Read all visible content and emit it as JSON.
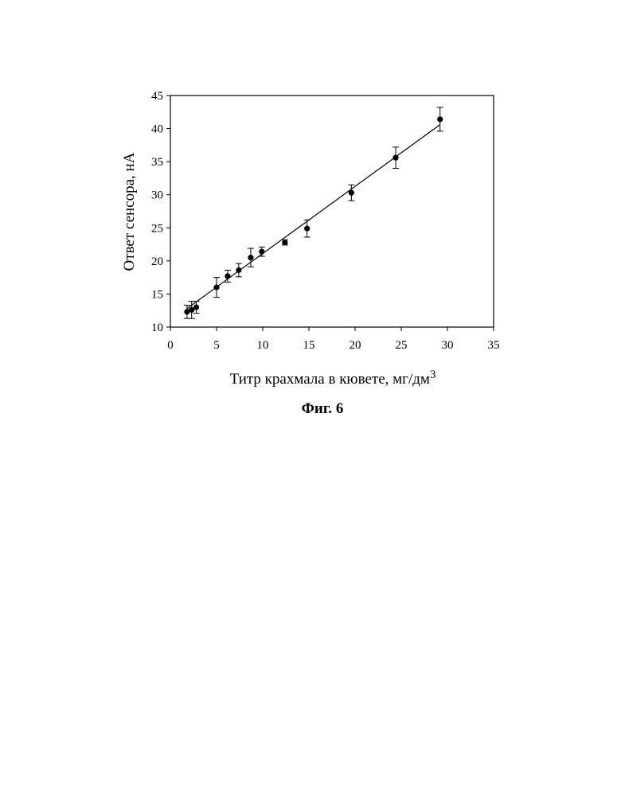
{
  "chart_data": {
    "type": "scatter",
    "xlabel": "Титр крахмала в кювете, мг/дм",
    "xlabel_superscript": "3",
    "ylabel": "Ответ сенсора, нА",
    "xlim": [
      0,
      35
    ],
    "ylim": [
      10,
      45
    ],
    "x_ticks": [
      "0",
      "5",
      "10",
      "15",
      "20",
      "25",
      "30",
      "35"
    ],
    "y_ticks": [
      "10",
      "15",
      "20",
      "25",
      "30",
      "35",
      "40",
      "45"
    ],
    "grid": false,
    "legend": "none",
    "marker_color": "#000000",
    "points": [
      {
        "x": 1.8,
        "y": 12.3,
        "err": 1.0
      },
      {
        "x": 2.3,
        "y": 12.6,
        "err": 1.3
      },
      {
        "x": 2.8,
        "y": 13.0,
        "err": 0.9
      },
      {
        "x": 5.0,
        "y": 16.0,
        "err": 1.5
      },
      {
        "x": 6.2,
        "y": 17.7,
        "err": 0.9
      },
      {
        "x": 7.4,
        "y": 18.6,
        "err": 1.0
      },
      {
        "x": 8.7,
        "y": 20.5,
        "err": 1.4
      },
      {
        "x": 9.9,
        "y": 21.4,
        "err": 0.7
      },
      {
        "x": 12.4,
        "y": 22.8,
        "err": 0.4
      },
      {
        "x": 14.8,
        "y": 24.9,
        "err": 1.3
      },
      {
        "x": 19.6,
        "y": 30.3,
        "err": 1.2
      },
      {
        "x": 24.4,
        "y": 35.6,
        "err": 1.6
      },
      {
        "x": 29.2,
        "y": 41.4,
        "err": 1.8
      }
    ],
    "trendline": {
      "x": [
        1.8,
        29.2
      ],
      "y": [
        12.8,
        40.6
      ]
    }
  },
  "caption": "Фиг. 6"
}
